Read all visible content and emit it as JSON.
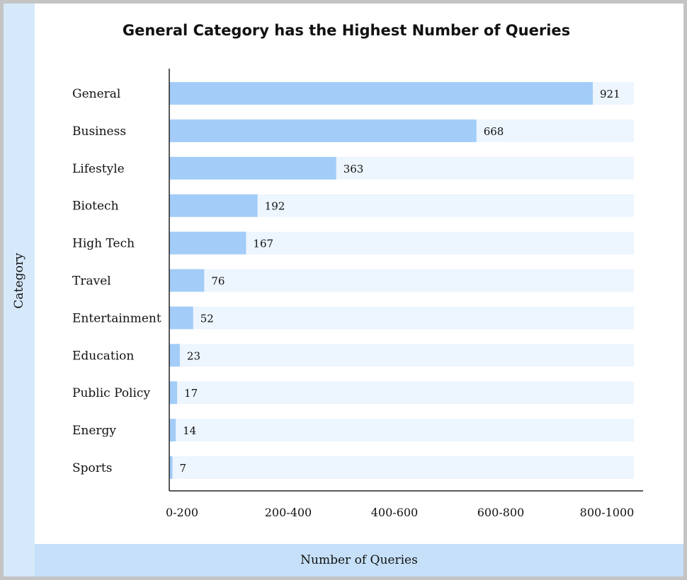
{
  "chart_data": {
    "type": "bar",
    "orientation": "horizontal",
    "title": "General Category has the Highest Number of Queries",
    "xlabel": "Number of Queries",
    "ylabel": "Category",
    "categories": [
      "General",
      "Business",
      "Lifestyle",
      "Biotech",
      "High Tech",
      "Travel",
      "Entertainment",
      "Education",
      "Public Policy",
      "Energy",
      "Sports"
    ],
    "values": [
      921,
      668,
      363,
      192,
      167,
      76,
      52,
      23,
      17,
      14,
      7
    ],
    "x_tick_labels": [
      "0-200",
      "200-400",
      "400-600",
      "600-800",
      "800-1000"
    ],
    "xlim": [
      0,
      1000
    ],
    "grid": false,
    "legend": "none",
    "colors": {
      "bar": "#a3cdf8",
      "track": "#edf5fe"
    }
  }
}
